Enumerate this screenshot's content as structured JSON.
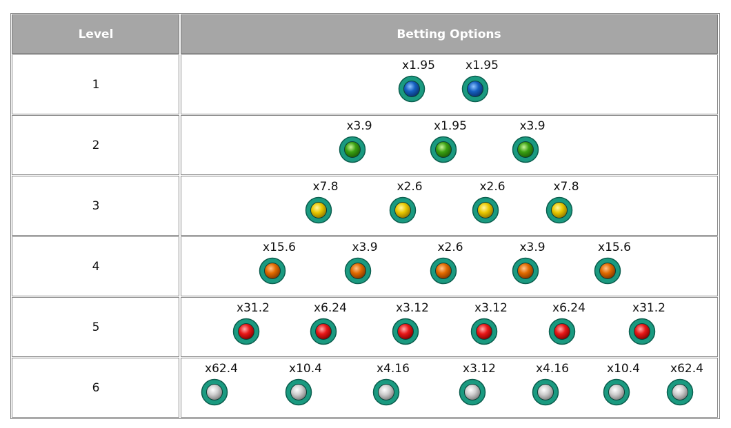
{
  "header": {
    "columns": [
      "Level",
      "Betting Options"
    ]
  },
  "table": {
    "rows": [
      {
        "level": "1",
        "options": [
          "x1.95",
          "x1.95"
        ]
      },
      {
        "level": "2",
        "options": [
          "x3.9",
          "x1.95",
          "x3.9"
        ]
      },
      {
        "level": "3",
        "options": [
          "x7.8",
          "x2.6",
          "x2.6",
          "x7.8"
        ]
      },
      {
        "level": "4",
        "options": [
          "x15.6",
          "x3.9",
          "x2.6",
          "x3.9",
          "x15.6"
        ]
      },
      {
        "level": "5",
        "options": [
          "x31.2",
          "x6.24",
          "x3.12",
          "x3.12",
          "x6.24",
          "x31.2"
        ]
      },
      {
        "level": "6",
        "options": [
          "x62.4",
          "x10.4",
          "x4.16",
          "x3.12",
          "x4.16",
          "x10.4",
          "x62.4"
        ]
      }
    ]
  }
}
